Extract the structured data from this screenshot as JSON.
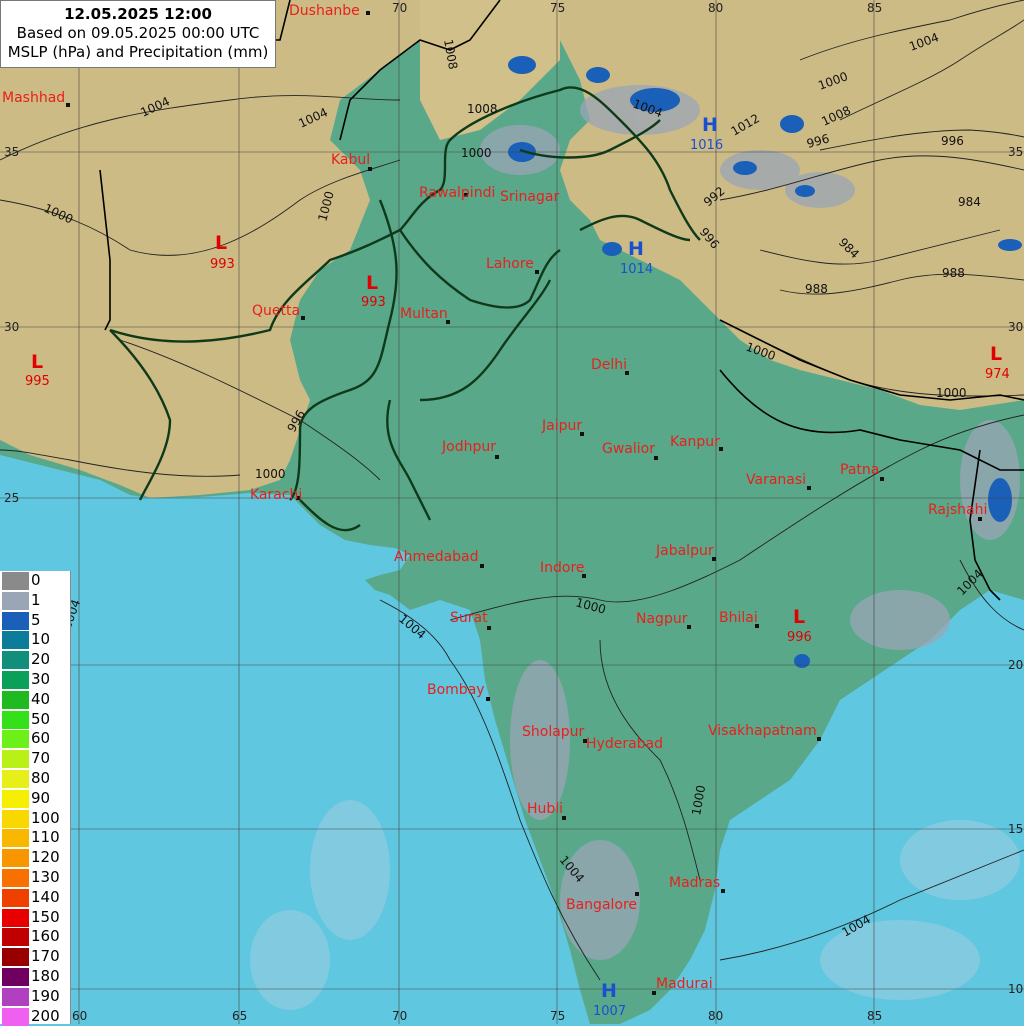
{
  "header": {
    "date_line": "12.05.2025 12:00",
    "based_line": "Based on 09.05.2025 00:00 UTC",
    "product_line": "MSLP (hPa) and Precipitation (mm)"
  },
  "legend": {
    "items": [
      {
        "label": "0",
        "color": "#8a8a8a"
      },
      {
        "label": "1",
        "color": "#9aa6b6"
      },
      {
        "label": "5",
        "color": "#1a5fb8"
      },
      {
        "label": "10",
        "color": "#0b7c9a"
      },
      {
        "label": "20",
        "color": "#128f7a"
      },
      {
        "label": "30",
        "color": "#0aa05a"
      },
      {
        "label": "40",
        "color": "#1fba1f"
      },
      {
        "label": "50",
        "color": "#34e018"
      },
      {
        "label": "60",
        "color": "#6cf018"
      },
      {
        "label": "70",
        "color": "#b8f018"
      },
      {
        "label": "80",
        "color": "#e6f018"
      },
      {
        "label": "90",
        "color": "#f6f000"
      },
      {
        "label": "100",
        "color": "#f8d800"
      },
      {
        "label": "110",
        "color": "#f8b800"
      },
      {
        "label": "120",
        "color": "#f89600"
      },
      {
        "label": "130",
        "color": "#f87000"
      },
      {
        "label": "140",
        "color": "#f04000"
      },
      {
        "label": "150",
        "color": "#e80000"
      },
      {
        "label": "160",
        "color": "#c00000"
      },
      {
        "label": "170",
        "color": "#980000"
      },
      {
        "label": "180",
        "color": "#700060"
      },
      {
        "label": "190",
        "color": "#b040c0"
      },
      {
        "label": "200",
        "color": "#f060f0"
      }
    ]
  },
  "lon_labels": [
    "60",
    "65",
    "70",
    "75",
    "80",
    "85"
  ],
  "lat_labels": [
    "35",
    "30",
    "25",
    "20",
    "15",
    "10"
  ],
  "top_lon_labels": [
    "70",
    "75",
    "80",
    "85"
  ],
  "cities": [
    "Dushanbe",
    "Mashhad",
    "Kabul",
    "Rawalpindi",
    "Srinagar",
    "Lahore",
    "Quetta",
    "Multan",
    "Delhi",
    "Jaipur",
    "Jodhpur",
    "Gwalior",
    "Kanpur",
    "Varanasi",
    "Patna",
    "Karachi",
    "Rajshahi",
    "Ahmedabad",
    "Indore",
    "Jabalpur",
    "Surat",
    "Nagpur",
    "Bhilai",
    "Bombay",
    "Sholapur",
    "Hyderabad",
    "Visakhapatnam",
    "Hubli",
    "Madras",
    "Bangalore",
    "Madurai"
  ],
  "pressure_centers": [
    {
      "type": "L",
      "value": "993",
      "color": "#e00000"
    },
    {
      "type": "L",
      "value": "993",
      "color": "#e00000"
    },
    {
      "type": "L",
      "value": "995",
      "color": "#e00000"
    },
    {
      "type": "L",
      "value": "974",
      "color": "#e00000"
    },
    {
      "type": "L",
      "value": "996",
      "color": "#e00000"
    },
    {
      "type": "H",
      "value": "1014",
      "color": "#1a4fd0"
    },
    {
      "type": "H",
      "value": "1016",
      "color": "#1a4fd0"
    },
    {
      "type": "H",
      "value": "1007",
      "color": "#1a4fd0"
    }
  ],
  "isobar_labels": [
    "1004",
    "1008",
    "1008",
    "1004",
    "1000",
    "1000",
    "1004",
    "1000",
    "1012",
    "1008",
    "1004",
    "1000",
    "996",
    "996",
    "992",
    "988",
    "984",
    "984",
    "988",
    "996",
    "1000",
    "1000",
    "1000",
    "996",
    "1000",
    "1004",
    "1004",
    "1000",
    "1004",
    "1004",
    "1004"
  ]
}
